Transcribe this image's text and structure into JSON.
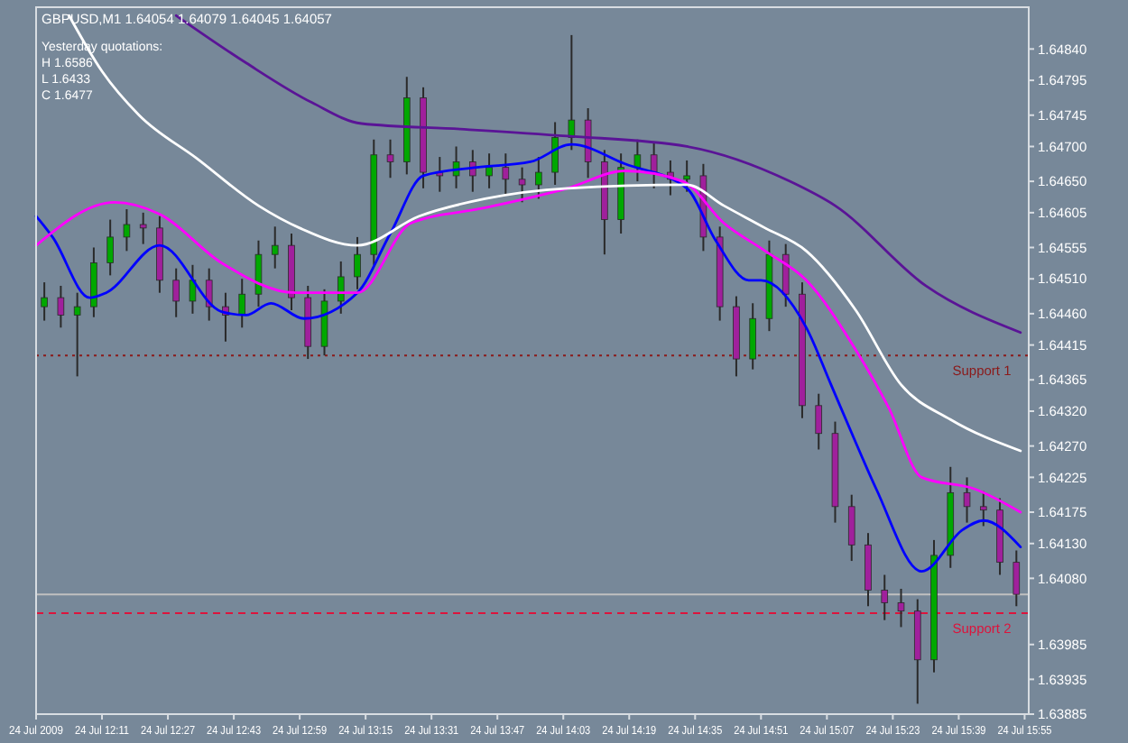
{
  "chart_data": {
    "type": "candlestick",
    "title": "GBPUSD,M1  1.64054 1.64079 1.64045 1.64057",
    "annotations": [
      "Yesterday quotations:",
      "H 1.6586",
      "L 1.6433",
      "C 1.6477"
    ],
    "x": [
      "2009-07-24T11:57",
      "2009-07-24T12:01",
      "2009-07-24T12:05",
      "2009-07-24T12:09",
      "2009-07-24T12:13",
      "2009-07-24T12:17",
      "2009-07-24T12:21",
      "2009-07-24T12:25",
      "2009-07-24T12:29",
      "2009-07-24T12:33",
      "2009-07-24T12:37",
      "2009-07-24T12:41",
      "2009-07-24T12:45",
      "2009-07-24T12:49",
      "2009-07-24T12:53",
      "2009-07-24T12:57",
      "2009-07-24T13:01",
      "2009-07-24T13:05",
      "2009-07-24T13:09",
      "2009-07-24T13:13",
      "2009-07-24T13:17",
      "2009-07-24T13:21",
      "2009-07-24T13:25",
      "2009-07-24T13:29",
      "2009-07-24T13:33",
      "2009-07-24T13:37",
      "2009-07-24T13:41",
      "2009-07-24T13:45",
      "2009-07-24T13:49",
      "2009-07-24T13:53",
      "2009-07-24T13:57",
      "2009-07-24T14:01",
      "2009-07-24T14:05",
      "2009-07-24T14:09",
      "2009-07-24T14:13",
      "2009-07-24T14:17",
      "2009-07-24T14:21",
      "2009-07-24T14:25",
      "2009-07-24T14:29",
      "2009-07-24T14:33",
      "2009-07-24T14:37",
      "2009-07-24T14:41",
      "2009-07-24T14:45",
      "2009-07-24T14:49",
      "2009-07-24T14:53",
      "2009-07-24T14:57",
      "2009-07-24T15:01",
      "2009-07-24T15:05",
      "2009-07-24T15:09",
      "2009-07-24T15:13",
      "2009-07-24T15:17",
      "2009-07-24T15:21",
      "2009-07-24T15:25",
      "2009-07-24T15:29",
      "2009-07-24T15:33",
      "2009-07-24T15:37",
      "2009-07-24T15:41",
      "2009-07-24T15:45",
      "2009-07-24T15:49",
      "2009-07-24T15:53"
    ],
    "ohlc": [
      [
        1.6447,
        1.64505,
        1.6445,
        1.64483
      ],
      [
        1.64483,
        1.645,
        1.6444,
        1.64458
      ],
      [
        1.64458,
        1.6449,
        1.6437,
        1.6447
      ],
      [
        1.6447,
        1.64555,
        1.64455,
        1.64533
      ],
      [
        1.64533,
        1.64595,
        1.64515,
        1.6457
      ],
      [
        1.6457,
        1.6461,
        1.6455,
        1.64588
      ],
      [
        1.64588,
        1.64605,
        1.6456,
        1.64583
      ],
      [
        1.64583,
        1.646,
        1.6449,
        1.64508
      ],
      [
        1.64508,
        1.64525,
        1.64455,
        1.64478
      ],
      [
        1.64478,
        1.6453,
        1.6446,
        1.64508
      ],
      [
        1.64508,
        1.64525,
        1.6445,
        1.6447
      ],
      [
        1.6447,
        1.6449,
        1.6442,
        1.64458
      ],
      [
        1.64458,
        1.6451,
        1.6444,
        1.64488
      ],
      [
        1.64488,
        1.64565,
        1.6447,
        1.64545
      ],
      [
        1.64545,
        1.64585,
        1.64525,
        1.64558
      ],
      [
        1.64558,
        1.64575,
        1.64465,
        1.64483
      ],
      [
        1.64483,
        1.645,
        1.64395,
        1.64413
      ],
      [
        1.64413,
        1.64495,
        1.644,
        1.64478
      ],
      [
        1.64478,
        1.64535,
        1.6446,
        1.64513
      ],
      [
        1.64513,
        1.6457,
        1.64495,
        1.64545
      ],
      [
        1.64545,
        1.6471,
        1.6453,
        1.64688
      ],
      [
        1.64688,
        1.6471,
        1.64655,
        1.64678
      ],
      [
        1.64678,
        1.648,
        1.6466,
        1.6477
      ],
      [
        1.6477,
        1.64785,
        1.6464,
        1.64663
      ],
      [
        1.64663,
        1.64685,
        1.64635,
        1.64658
      ],
      [
        1.64658,
        1.647,
        1.6464,
        1.64678
      ],
      [
        1.64678,
        1.64695,
        1.64635,
        1.64658
      ],
      [
        1.64658,
        1.6469,
        1.6464,
        1.6467
      ],
      [
        1.6467,
        1.6469,
        1.6463,
        1.64653
      ],
      [
        1.64653,
        1.6467,
        1.6462,
        1.64645
      ],
      [
        1.64645,
        1.64685,
        1.64625,
        1.64663
      ],
      [
        1.64663,
        1.64735,
        1.64645,
        1.64713
      ],
      [
        1.64713,
        1.6486,
        1.64695,
        1.64738
      ],
      [
        1.64738,
        1.64755,
        1.64655,
        1.64678
      ],
      [
        1.64678,
        1.64695,
        1.64545,
        1.64595
      ],
      [
        1.64595,
        1.6469,
        1.64575,
        1.6467
      ],
      [
        1.6467,
        1.6471,
        1.6465,
        1.64688
      ],
      [
        1.64688,
        1.64705,
        1.6464,
        1.64663
      ],
      [
        1.64663,
        1.6468,
        1.6463,
        1.64653
      ],
      [
        1.64653,
        1.6468,
        1.64635,
        1.64658
      ],
      [
        1.64658,
        1.64675,
        1.6455,
        1.6457
      ],
      [
        1.6457,
        1.64585,
        1.6445,
        1.6447
      ],
      [
        1.6447,
        1.64485,
        1.6437,
        1.64395
      ],
      [
        1.64395,
        1.64475,
        1.6438,
        1.64453
      ],
      [
        1.64453,
        1.64565,
        1.64435,
        1.64545
      ],
      [
        1.64545,
        1.6456,
        1.6447,
        1.64488
      ],
      [
        1.64488,
        1.64505,
        1.6431,
        1.64328
      ],
      [
        1.64328,
        1.64345,
        1.64265,
        1.64288
      ],
      [
        1.64288,
        1.64305,
        1.6416,
        1.64183
      ],
      [
        1.64183,
        1.642,
        1.64105,
        1.64128
      ],
      [
        1.64128,
        1.64145,
        1.6404,
        1.64063
      ],
      [
        1.64063,
        1.64085,
        1.6402,
        1.64045
      ],
      [
        1.64045,
        1.64065,
        1.6401,
        1.64033
      ],
      [
        1.64033,
        1.6405,
        1.639,
        1.63963
      ],
      [
        1.63963,
        1.64135,
        1.63945,
        1.64113
      ],
      [
        1.64113,
        1.6424,
        1.64095,
        1.64203
      ],
      [
        1.64203,
        1.64225,
        1.6416,
        1.64183
      ],
      [
        1.64183,
        1.64205,
        1.64155,
        1.64178
      ],
      [
        1.64178,
        1.64195,
        1.64085,
        1.64103
      ],
      [
        1.64103,
        1.6412,
        1.6404,
        1.64057
      ]
    ],
    "colors": [
      "#00a800",
      "#a0209c",
      "#00a800",
      "#00a800",
      "#00a800",
      "#00a800",
      "#a0209c",
      "#a0209c",
      "#a0209c",
      "#00a800",
      "#a0209c",
      "#a0209c",
      "#00a800",
      "#00a800",
      "#00a800",
      "#a0209c",
      "#a0209c",
      "#00a800",
      "#00a800",
      "#00a800",
      "#00a800",
      "#a0209c",
      "#00a800",
      "#a0209c",
      "#a0209c",
      "#00a800",
      "#a0209c",
      "#00a800",
      "#a0209c",
      "#a0209c",
      "#00a800",
      "#00a800",
      "#00a800",
      "#a0209c",
      "#a0209c",
      "#00a800",
      "#00a800",
      "#a0209c",
      "#a0209c",
      "#00a800",
      "#a0209c",
      "#a0209c",
      "#a0209c",
      "#00a800",
      "#00a800",
      "#a0209c",
      "#a0209c",
      "#a0209c",
      "#a0209c",
      "#a0209c",
      "#a0209c",
      "#a0209c",
      "#a0209c",
      "#a0209c",
      "#00a800",
      "#00a800",
      "#a0209c",
      "#a0209c",
      "#a0209c",
      "#a0209c"
    ],
    "series": [
      {
        "type": "line",
        "color": "#0000ff",
        "x": [
          "2009-07-24T11:55",
          "2009-07-24T11:59",
          "2009-07-24T12:08",
          "2009-07-24T12:12",
          "2009-07-24T12:25",
          "2009-07-24T12:40",
          "2009-07-24T12:46",
          "2009-07-24T12:52",
          "2009-07-24T13:00",
          "2009-07-24T13:13",
          "2009-07-24T13:21",
          "2009-07-24T13:29",
          "2009-07-24T13:42",
          "2009-07-24T13:55",
          "2009-07-24T14:05",
          "2009-07-24T14:18",
          "2009-07-24T14:33",
          "2009-07-24T14:40",
          "2009-07-24T14:48",
          "2009-07-24T14:51",
          "2009-07-24T15:02",
          "2009-07-24T15:08",
          "2009-07-24T15:14",
          "2009-07-24T15:19",
          "2009-07-24T15:30",
          "2009-07-24T15:40",
          "2009-07-24T15:45",
          "2009-07-24T15:54"
        ],
        "values": [
          1.646,
          1.6457,
          1.64483,
          1.6449,
          1.64558,
          1.64463,
          1.64458,
          1.64475,
          1.64453,
          1.6449,
          1.64575,
          1.64658,
          1.6467,
          1.64678,
          1.64703,
          1.64675,
          1.6464,
          1.64565,
          1.64508,
          1.64508,
          1.6444,
          1.64358,
          1.64275,
          1.64208,
          1.6409,
          1.6415,
          1.64163,
          1.64125
        ]
      },
      {
        "type": "line",
        "color": "#ff00ff",
        "x": [
          "2009-07-24T11:55",
          "2009-07-24T12:14",
          "2009-07-24T12:25",
          "2009-07-24T12:40",
          "2009-07-24T12:58",
          "2009-07-24T13:13",
          "2009-07-24T13:26",
          "2009-07-24T13:44",
          "2009-07-24T14:04",
          "2009-07-24T14:18",
          "2009-07-24T14:32",
          "2009-07-24T14:42",
          "2009-07-24T14:52",
          "2009-07-24T15:02",
          "2009-07-24T15:14",
          "2009-07-24T15:22",
          "2009-07-24T15:30",
          "2009-07-24T15:43",
          "2009-07-24T15:54"
        ],
        "values": [
          1.64558,
          1.6462,
          1.64603,
          1.64533,
          1.6449,
          1.6449,
          1.6459,
          1.64612,
          1.6464,
          1.64665,
          1.6465,
          1.6459,
          1.6455,
          1.64508,
          1.64408,
          1.64325,
          1.64225,
          1.64208,
          1.64175
        ]
      },
      {
        "type": "line",
        "color": "#ffffff",
        "x": [
          "2009-07-24T12:03",
          "2009-07-24T12:11",
          "2009-07-24T12:20",
          "2009-07-24T12:34",
          "2009-07-24T12:49",
          "2009-07-24T12:59",
          "2009-07-24T13:13",
          "2009-07-24T13:28",
          "2009-07-24T13:44",
          "2009-07-24T14:04",
          "2009-07-24T14:33",
          "2009-07-24T14:42",
          "2009-07-24T14:52",
          "2009-07-24T15:02",
          "2009-07-24T15:14",
          "2009-07-24T15:25",
          "2009-07-24T15:37",
          "2009-07-24T15:54"
        ],
        "values": [
          1.64888,
          1.64808,
          1.64745,
          1.64683,
          1.64615,
          1.64583,
          1.64558,
          1.646,
          1.64625,
          1.6464,
          1.64645,
          1.64615,
          1.64583,
          1.6455,
          1.64465,
          1.64358,
          1.64308,
          1.64263
        ]
      },
      {
        "type": "line",
        "color": "#5a1496",
        "x": [
          "2009-07-24T12:29",
          "2009-07-24T12:46",
          "2009-07-24T13:02",
          "2009-07-24T13:14",
          "2009-07-24T13:38",
          "2009-07-24T14:04",
          "2009-07-24T14:33",
          "2009-07-24T14:58",
          "2009-07-24T15:09",
          "2009-07-24T15:31",
          "2009-07-24T15:54"
        ],
        "values": [
          1.64888,
          1.6482,
          1.64763,
          1.64733,
          1.64725,
          1.64715,
          1.647,
          1.6465,
          1.64615,
          1.645,
          1.64433
        ]
      }
    ],
    "xlim": [
      "2009-07-24T11:55",
      "2009-07-24T15:56"
    ],
    "xticks": [
      {
        "value": "2009-07-24T11:55",
        "label": "24 Jul 2009"
      },
      {
        "value": "2009-07-24T12:11",
        "label": "24 Jul 12:11"
      },
      {
        "value": "2009-07-24T12:27",
        "label": "24 Jul 12:27"
      },
      {
        "value": "2009-07-24T12:43",
        "label": "24 Jul 12:43"
      },
      {
        "value": "2009-07-24T12:59",
        "label": "24 Jul 12:59"
      },
      {
        "value": "2009-07-24T13:15",
        "label": "24 Jul 13:15"
      },
      {
        "value": "2009-07-24T13:31",
        "label": "24 Jul 13:31"
      },
      {
        "value": "2009-07-24T13:47",
        "label": "24 Jul 13:47"
      },
      {
        "value": "2009-07-24T14:03",
        "label": "24 Jul 14:03"
      },
      {
        "value": "2009-07-24T14:19",
        "label": "24 Jul 14:19"
      },
      {
        "value": "2009-07-24T14:35",
        "label": "24 Jul 14:35"
      },
      {
        "value": "2009-07-24T14:51",
        "label": "24 Jul 14:51"
      },
      {
        "value": "2009-07-24T15:07",
        "label": "24 Jul 15:07"
      },
      {
        "value": "2009-07-24T15:23",
        "label": "24 Jul 15:23"
      },
      {
        "value": "2009-07-24T15:39",
        "label": "24 Jul 15:39"
      },
      {
        "value": "2009-07-24T15:55",
        "label": "24 Jul 15:55"
      }
    ],
    "ylim": [
      1.63885,
      1.649
    ],
    "yticks": [
      {
        "value": 1.6484,
        "label": "1.64840"
      },
      1.64795,
      1.64745,
      {
        "value": 1.647,
        "label": "1.64700"
      },
      {
        "value": 1.6465,
        "label": "1.64650"
      },
      1.64605,
      1.64555,
      {
        "value": 1.6451,
        "label": "1.64510"
      },
      {
        "value": 1.6446,
        "label": "1.64460"
      },
      1.64415,
      1.64365,
      {
        "value": 1.6432,
        "label": "1.64320"
      },
      {
        "value": 1.6427,
        "label": "1.64270"
      },
      1.64225,
      1.64175,
      {
        "value": 1.6413,
        "label": "1.64130"
      },
      {
        "value": 1.6408,
        "label": "1.64080"
      },
      1.63985,
      1.63935,
      1.63885
    ],
    "ref_lines": [
      {
        "axis": "y",
        "value": 1.644,
        "label": "Support 1",
        "color": "#8b1a1a",
        "line_style": "dotted"
      },
      {
        "axis": "y",
        "value": 1.6403,
        "label": "Support 2",
        "color": "#dc143c",
        "line_style": "dashed"
      },
      {
        "axis": "y",
        "value": 1.64057,
        "label": null,
        "color": "#c0c0c0",
        "line_style": "solid"
      }
    ],
    "grid": false
  }
}
